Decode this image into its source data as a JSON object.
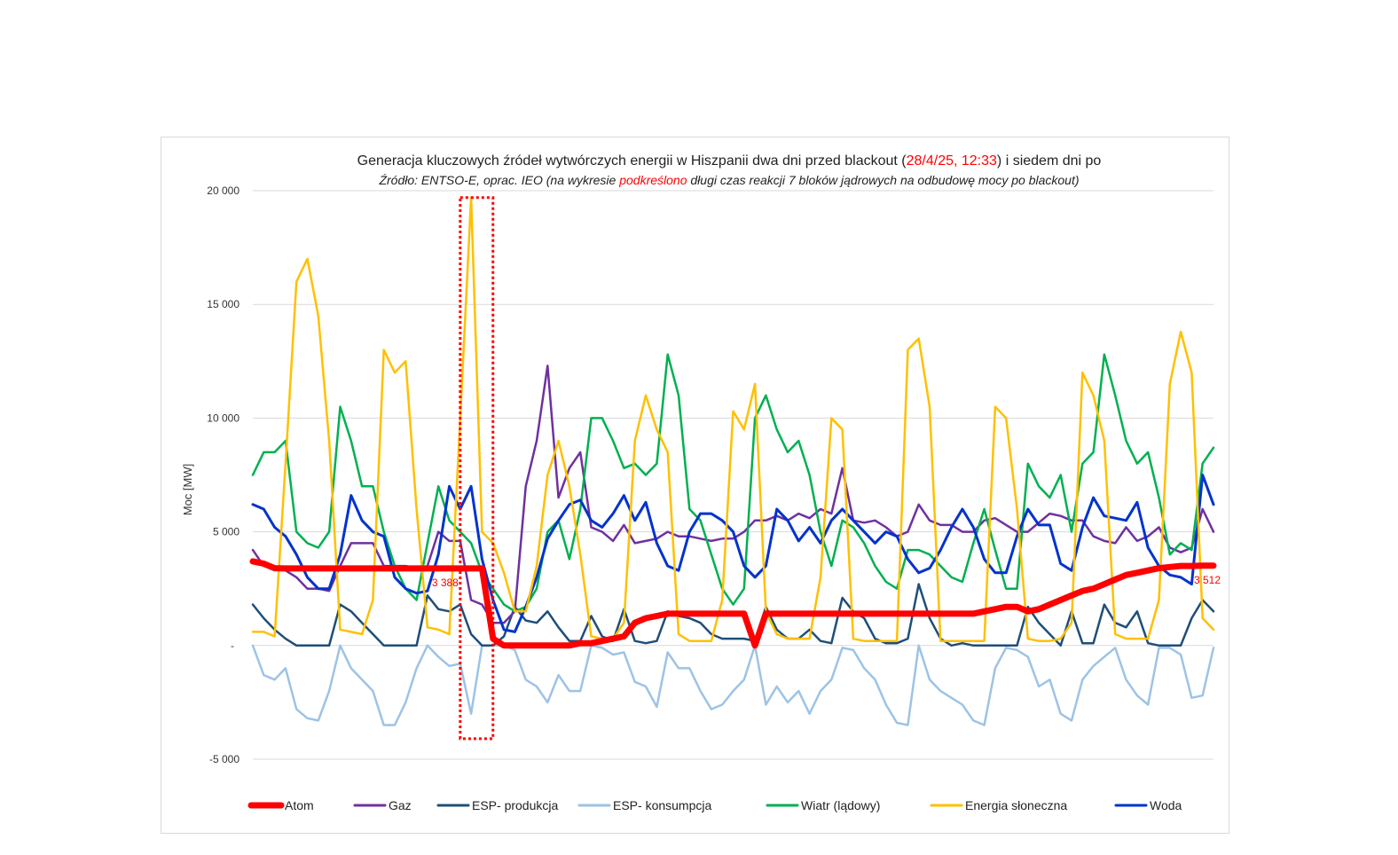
{
  "chart_data": {
    "type": "line",
    "title_parts": {
      "before": "Generacja kluczowych źródeł wytwórczych energii w Hiszpanii dwa dni przed blackout (",
      "highlight": "28/4/25, 12:33",
      "after": ") i siedem dni po"
    },
    "subtitle_parts": {
      "before": "Źródło: ENTSO-E, oprac. IEO (na wykresie ",
      "highlight": "podkreślono",
      "after": " długi czas reakcji 7 bloków jądrowych na odbudowę mocy po blackout)"
    },
    "ylabel": "Moc [MW]",
    "xlabel": "",
    "ylim": [
      -5000,
      20000
    ],
    "yticks": [
      20000,
      15000,
      10000,
      5000,
      0,
      -5000
    ],
    "ytick_labels": [
      "20 000",
      "15 000",
      "10 000",
      "5 000",
      "-",
      "-5 000"
    ],
    "x_unit": "hours",
    "x_step": 3,
    "x_range": [
      0,
      264
    ],
    "grid": true,
    "legend_position": "bottom",
    "highlight_color": "#ff0000",
    "annotations": [
      {
        "text": "3 388",
        "x": 57,
        "y": 3388,
        "color": "#ff0000"
      },
      {
        "text": "3 512",
        "x": 264,
        "y": 3512,
        "color": "#ff0000"
      }
    ],
    "blackout_box": {
      "x_from": 57,
      "x_to": 66,
      "y_from": -4100,
      "y_to": 19700,
      "color": "#ff0000"
    },
    "series": [
      {
        "name": "Atom",
        "color": "#ff0000",
        "width": 7,
        "values": [
          3700,
          3600,
          3400,
          3388,
          3388,
          3388,
          3388,
          3388,
          3388,
          3388,
          3388,
          3388,
          3388,
          3388,
          3388,
          3388,
          3388,
          3388,
          3388,
          3388,
          3388,
          3388,
          300,
          0,
          0,
          0,
          0,
          0,
          0,
          0,
          100,
          100,
          200,
          300,
          400,
          1000,
          1200,
          1300,
          1400,
          1400,
          1400,
          1400,
          1400,
          1400,
          1400,
          1400,
          0,
          1400,
          1400,
          1400,
          1400,
          1400,
          1400,
          1400,
          1400,
          1400,
          1400,
          1400,
          1400,
          1400,
          1400,
          1400,
          1400,
          1400,
          1400,
          1400,
          1400,
          1500,
          1600,
          1700,
          1700,
          1500,
          1600,
          1800,
          2000,
          2200,
          2400,
          2500,
          2700,
          2900,
          3100,
          3200,
          3300,
          3400,
          3450,
          3500,
          3500,
          3512,
          3512
        ]
      },
      {
        "name": "Gaz",
        "color": "#7030a0",
        "width": 2.5,
        "values": [
          4200,
          3500,
          3400,
          3300,
          3000,
          2500,
          2500,
          2400,
          3500,
          4500,
          4500,
          4500,
          3500,
          3500,
          3500,
          3400,
          3500,
          5000,
          4600,
          4600,
          2000,
          1800,
          1000,
          1000,
          1500,
          7000,
          9000,
          12300,
          6500,
          7800,
          8500,
          5200,
          5000,
          4600,
          5300,
          4500,
          4600,
          4700,
          5000,
          4800,
          4800,
          4700,
          4600,
          4700,
          4700,
          5000,
          5500,
          5500,
          5700,
          5500,
          5800,
          5600,
          6000,
          5800,
          7800,
          5500,
          5400,
          5500,
          5200,
          4800,
          5000,
          6200,
          5500,
          5300,
          5300,
          5000,
          5000,
          5500,
          5600,
          5300,
          5000,
          5000,
          5400,
          5800,
          5700,
          5500,
          5500,
          4800,
          4600,
          4500,
          5200,
          4600,
          4800,
          5200,
          4300,
          4100,
          4300,
          6000,
          5000
        ]
      },
      {
        "name": "ESP- produkcja",
        "color": "#1f4e79",
        "width": 2.5,
        "values": [
          1800,
          1200,
          700,
          300,
          0,
          0,
          0,
          0,
          1800,
          1500,
          1000,
          500,
          0,
          0,
          0,
          0,
          2200,
          1600,
          1500,
          1800,
          500,
          0,
          0,
          400,
          1700,
          1100,
          1000,
          1500,
          800,
          200,
          200,
          1300,
          400,
          200,
          1600,
          200,
          100,
          200,
          1500,
          1300,
          1200,
          1000,
          500,
          300,
          300,
          300,
          200,
          1700,
          700,
          300,
          300,
          700,
          200,
          100,
          2100,
          1500,
          1200,
          300,
          100,
          100,
          300,
          2700,
          1200,
          300,
          0,
          100,
          0,
          0,
          0,
          0,
          0,
          1700,
          1000,
          500,
          0,
          1500,
          100,
          100,
          1800,
          1000,
          800,
          1500,
          100,
          0,
          0,
          0,
          1200,
          2000,
          1500
        ]
      },
      {
        "name": "ESP- konsumpcja",
        "color": "#9dc3e6",
        "width": 2.5,
        "values": [
          0,
          -1300,
          -1500,
          -1000,
          -2800,
          -3200,
          -3300,
          -2000,
          0,
          -1000,
          -1500,
          -2000,
          -3500,
          -3500,
          -2500,
          -1000,
          0,
          -500,
          -900,
          -800,
          -3000,
          0,
          0,
          0,
          -200,
          -1500,
          -1800,
          -2500,
          -1300,
          -2000,
          -2000,
          0,
          -100,
          -400,
          -300,
          -1600,
          -1800,
          -2700,
          -300,
          -1000,
          -1000,
          -2000,
          -2800,
          -2600,
          -2000,
          -1500,
          0,
          -2600,
          -1800,
          -2500,
          -2000,
          -3000,
          -2000,
          -1500,
          -100,
          -200,
          -1000,
          -1500,
          -2600,
          -3400,
          -3500,
          0,
          -1500,
          -2000,
          -2300,
          -2600,
          -3300,
          -3500,
          -1000,
          -100,
          -200,
          -500,
          -1800,
          -1500,
          -3000,
          -3300,
          -1500,
          -900,
          -500,
          -100,
          -1500,
          -2200,
          -2600,
          -100,
          -100,
          -400,
          -2300,
          -2200,
          -100
        ]
      },
      {
        "name": "Wiatr (lądowy)",
        "color": "#00b050",
        "width": 2.5,
        "values": [
          7500,
          8500,
          8500,
          9000,
          5000,
          4500,
          4300,
          5000,
          10500,
          9000,
          7000,
          7000,
          5000,
          3500,
          2500,
          2000,
          4500,
          7000,
          5500,
          5000,
          4500,
          3200,
          2500,
          1800,
          1500,
          1700,
          2500,
          5000,
          5500,
          3800,
          6000,
          10000,
          10000,
          9000,
          7800,
          8000,
          7500,
          8000,
          12800,
          11000,
          6000,
          5500,
          4000,
          2500,
          1800,
          2500,
          10000,
          11000,
          9500,
          8500,
          9000,
          7500,
          5000,
          3500,
          5500,
          5200,
          4500,
          3500,
          2800,
          2500,
          4200,
          4200,
          4000,
          3500,
          3000,
          2800,
          4500,
          6000,
          4200,
          2500,
          2500,
          8000,
          7000,
          6500,
          7500,
          5000,
          8000,
          8500,
          12800,
          11000,
          9000,
          8000,
          8500,
          6500,
          4000,
          4500,
          4200,
          8000,
          8700
        ]
      },
      {
        "name": "Energia słoneczna",
        "color": "#ffc000",
        "width": 2.5,
        "values": [
          600,
          600,
          400,
          8000,
          16000,
          17000,
          14500,
          9000,
          700,
          600,
          500,
          2000,
          13000,
          12000,
          12500,
          6000,
          800,
          700,
          500,
          10000,
          19700,
          5000,
          4500,
          3200,
          1500,
          1500,
          3500,
          7500,
          9000,
          7000,
          4000,
          400,
          300,
          300,
          1000,
          9000,
          11000,
          9500,
          8500,
          500,
          200,
          200,
          200,
          2000,
          10300,
          9500,
          11500,
          1500,
          500,
          300,
          300,
          300,
          3000,
          10000,
          9500,
          300,
          200,
          200,
          200,
          200,
          13000,
          13500,
          10500,
          200,
          200,
          200,
          200,
          200,
          10500,
          10000,
          6000,
          300,
          200,
          200,
          300,
          1000,
          12000,
          11000,
          9000,
          500,
          300,
          300,
          300,
          2000,
          11500,
          13800,
          12000,
          1200,
          700
        ]
      },
      {
        "name": "Woda",
        "color": "#0033cc",
        "width": 3,
        "values": [
          6200,
          6000,
          5200,
          4800,
          4000,
          3000,
          2500,
          2500,
          4000,
          6600,
          5500,
          5000,
          4800,
          3000,
          2500,
          2300,
          2400,
          4000,
          7000,
          6000,
          7000,
          3800,
          2000,
          700,
          600,
          1700,
          3000,
          4700,
          5500,
          6200,
          6400,
          5500,
          5200,
          5800,
          6600,
          5500,
          6300,
          4500,
          3500,
          3300,
          5000,
          5800,
          5800,
          5500,
          5000,
          3500,
          3000,
          3500,
          6000,
          5500,
          4600,
          5200,
          4500,
          5500,
          6000,
          5500,
          5000,
          4500,
          5000,
          4800,
          3800,
          3200,
          3400,
          4200,
          5200,
          6000,
          5200,
          3800,
          3200,
          3200,
          4800,
          6000,
          5300,
          5300,
          3600,
          3300,
          5200,
          6500,
          5700,
          5600,
          5500,
          6300,
          4300,
          3500,
          3100,
          3000,
          2700,
          7500,
          6200
        ]
      }
    ]
  }
}
